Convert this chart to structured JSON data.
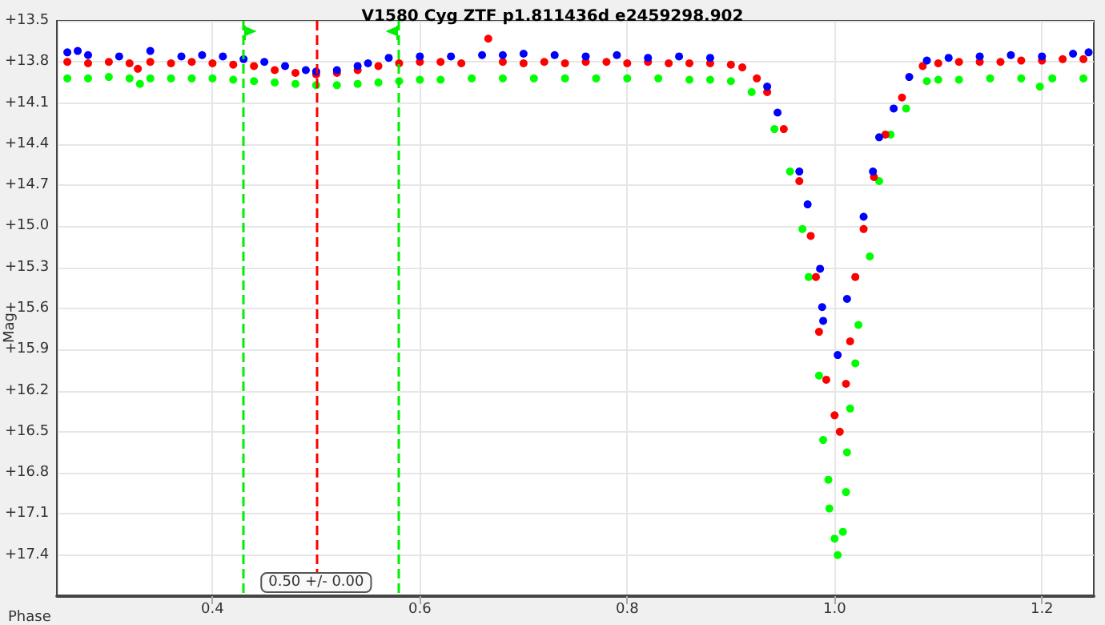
{
  "chart_data": {
    "type": "scatter",
    "title": "V1580 Cyg ZTF p1.811436d e2459298.902",
    "xlabel": "Phase",
    "ylabel": "Mag",
    "xlim": [
      0.25,
      1.25
    ],
    "xticks": [
      0.4,
      0.6,
      0.8,
      {
        "value": 1.0,
        "label": "1.0"
      },
      1.2
    ],
    "ylim": [
      17.7,
      13.5
    ],
    "yticks": [
      {
        "value": 13.5,
        "label": "+13.5"
      },
      {
        "value": 13.8,
        "label": "+13.8"
      },
      {
        "value": 14.1,
        "label": "+14.1"
      },
      {
        "value": 14.4,
        "label": "+14.4"
      },
      {
        "value": 14.7,
        "label": "+14.7"
      },
      {
        "value": 15.0,
        "label": "+15.0"
      },
      {
        "value": 15.3,
        "label": "+15.3"
      },
      {
        "value": 15.6,
        "label": "+15.6"
      },
      {
        "value": 15.9,
        "label": "+15.9"
      },
      {
        "value": 16.2,
        "label": "+16.2"
      },
      {
        "value": 16.5,
        "label": "+16.5"
      },
      {
        "value": 16.8,
        "label": "+16.8"
      },
      {
        "value": 17.1,
        "label": "+17.1"
      },
      {
        "value": 17.4,
        "label": "+17.4"
      }
    ],
    "grid": true,
    "marker": "circle",
    "series": [
      {
        "color": "#00ff00",
        "x": [
          0.26,
          0.28,
          0.3,
          0.32,
          0.33,
          0.34,
          0.36,
          0.38,
          0.4,
          0.42,
          0.44,
          0.46,
          0.48,
          0.5,
          0.52,
          0.54,
          0.56,
          0.58,
          0.6,
          0.62,
          0.65,
          0.68,
          0.71,
          0.74,
          0.77,
          0.8,
          0.83,
          0.86,
          0.88,
          0.9,
          0.92,
          0.942,
          0.957,
          0.969,
          0.975,
          0.985,
          0.989,
          0.994,
          0.995,
          1.0,
          1.003,
          1.008,
          1.011,
          1.012,
          1.015,
          1.02,
          1.023,
          1.034,
          1.043,
          1.054,
          1.069,
          1.089,
          1.1,
          1.12,
          1.15,
          1.18,
          1.198,
          1.21,
          1.24
        ],
        "values": [
          13.92,
          13.92,
          13.91,
          13.92,
          13.96,
          13.92,
          13.92,
          13.92,
          13.92,
          13.93,
          13.94,
          13.95,
          13.96,
          13.97,
          13.97,
          13.96,
          13.95,
          13.94,
          13.93,
          13.93,
          13.92,
          13.92,
          13.92,
          13.92,
          13.92,
          13.92,
          13.92,
          13.93,
          13.93,
          13.94,
          14.02,
          14.29,
          14.6,
          15.02,
          15.37,
          16.09,
          16.56,
          16.85,
          17.06,
          17.28,
          17.4,
          17.23,
          16.94,
          16.65,
          16.33,
          16.0,
          15.72,
          15.22,
          14.67,
          14.33,
          14.14,
          13.94,
          13.93,
          13.93,
          13.92,
          13.92,
          13.98,
          13.92,
          13.92
        ]
      },
      {
        "color": "#ff0000",
        "x": [
          0.26,
          0.28,
          0.3,
          0.32,
          0.328,
          0.34,
          0.36,
          0.38,
          0.4,
          0.42,
          0.44,
          0.46,
          0.48,
          0.5,
          0.52,
          0.54,
          0.56,
          0.58,
          0.6,
          0.62,
          0.64,
          0.666,
          0.68,
          0.7,
          0.72,
          0.74,
          0.76,
          0.78,
          0.8,
          0.82,
          0.84,
          0.86,
          0.88,
          0.9,
          0.911,
          0.925,
          0.935,
          0.951,
          0.966,
          0.977,
          0.982,
          0.985,
          0.992,
          1.0,
          1.005,
          1.011,
          1.015,
          1.02,
          1.028,
          1.038,
          1.049,
          1.065,
          1.085,
          1.1,
          1.12,
          1.14,
          1.16,
          1.18,
          1.2,
          1.22,
          1.24
        ],
        "values": [
          13.8,
          13.81,
          13.8,
          13.81,
          13.85,
          13.8,
          13.81,
          13.8,
          13.81,
          13.82,
          13.83,
          13.86,
          13.88,
          13.89,
          13.88,
          13.86,
          13.83,
          13.81,
          13.8,
          13.8,
          13.81,
          13.63,
          13.8,
          13.81,
          13.8,
          13.81,
          13.8,
          13.8,
          13.81,
          13.8,
          13.81,
          13.81,
          13.81,
          13.82,
          13.84,
          13.92,
          14.02,
          14.29,
          14.67,
          15.07,
          15.37,
          15.77,
          16.12,
          16.38,
          16.5,
          16.15,
          15.84,
          15.37,
          15.02,
          14.64,
          14.33,
          14.06,
          13.83,
          13.81,
          13.8,
          13.8,
          13.8,
          13.79,
          13.79,
          13.78,
          13.78
        ]
      },
      {
        "color": "#0000ff",
        "x": [
          0.26,
          0.27,
          0.28,
          0.31,
          0.34,
          0.37,
          0.39,
          0.41,
          0.43,
          0.45,
          0.47,
          0.49,
          0.5,
          0.52,
          0.54,
          0.55,
          0.57,
          0.6,
          0.63,
          0.66,
          0.68,
          0.7,
          0.73,
          0.76,
          0.79,
          0.82,
          0.85,
          0.88,
          0.935,
          0.945,
          0.966,
          0.974,
          0.986,
          0.988,
          0.989,
          1.003,
          1.012,
          1.028,
          1.037,
          1.043,
          1.057,
          1.072,
          1.089,
          1.11,
          1.14,
          1.17,
          1.2,
          1.23,
          1.245
        ],
        "values": [
          13.73,
          13.72,
          13.75,
          13.76,
          13.72,
          13.76,
          13.75,
          13.76,
          13.78,
          13.8,
          13.83,
          13.86,
          13.87,
          13.86,
          13.83,
          13.81,
          13.77,
          13.76,
          13.76,
          13.75,
          13.75,
          13.74,
          13.75,
          13.76,
          13.75,
          13.77,
          13.76,
          13.77,
          13.98,
          14.17,
          14.6,
          14.84,
          15.31,
          15.59,
          15.69,
          15.94,
          15.53,
          14.93,
          14.6,
          14.35,
          14.14,
          13.91,
          13.79,
          13.77,
          13.76,
          13.75,
          13.76,
          13.74,
          13.73
        ]
      }
    ],
    "ref_lines": [
      {
        "axis": "x",
        "value": 0.431,
        "color": "#00ee00",
        "line_style": "dashed"
      },
      {
        "axis": "x",
        "value": 0.5,
        "label": "0.50 +/- 0.00",
        "color": "#ff0000",
        "line_style": "dashed"
      },
      {
        "axis": "x",
        "value": 0.578,
        "color": "#00ee00",
        "line_style": "dashed"
      }
    ]
  }
}
